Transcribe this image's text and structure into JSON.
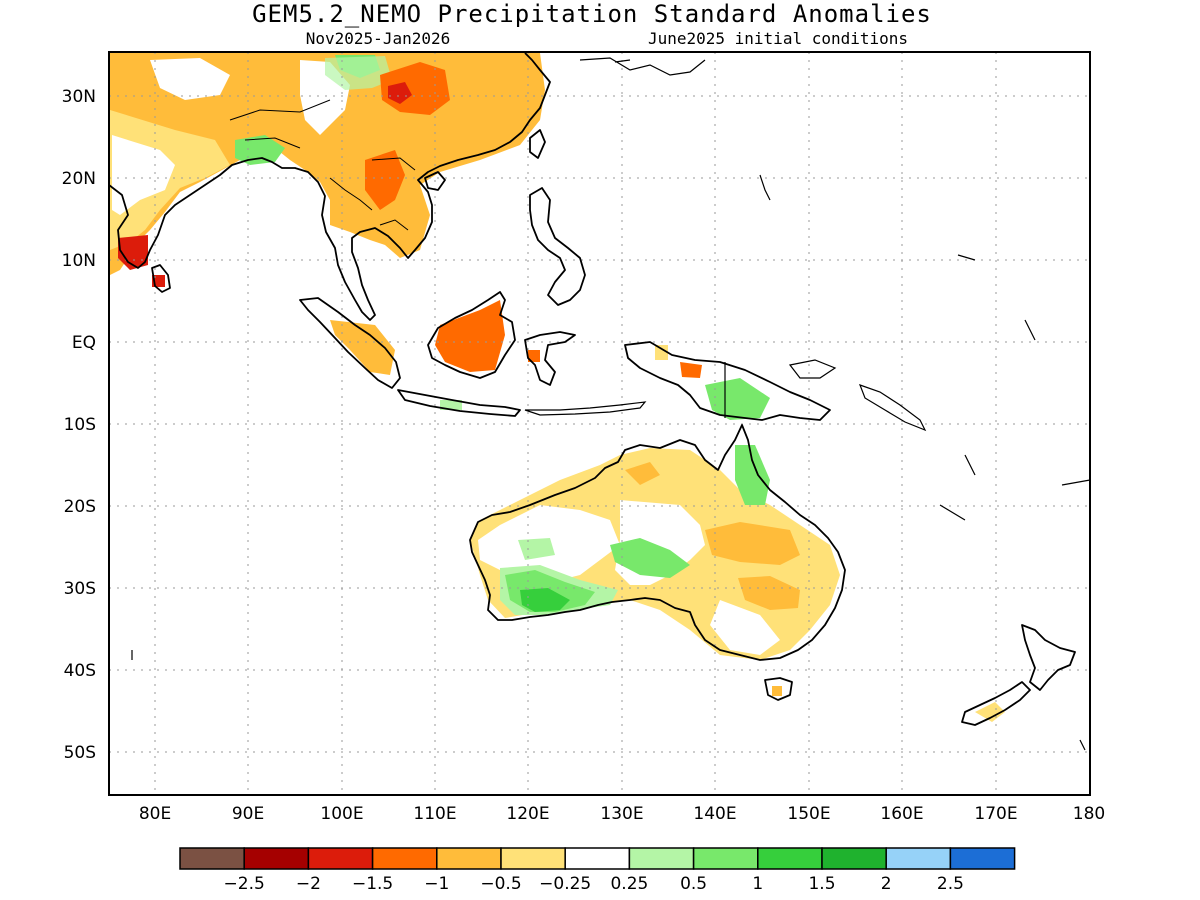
{
  "title": "GEM5.2_NEMO Precipitation Standard Anomalies",
  "subtitle_left": "Nov2025-Jan2026",
  "subtitle_right": "June2025 initial conditions",
  "x_ticks": [
    "80E",
    "90E",
    "100E",
    "110E",
    "120E",
    "130E",
    "140E",
    "150E",
    "160E",
    "170E",
    "180"
  ],
  "y_ticks": [
    "30N",
    "20N",
    "10N",
    "EQ",
    "10S",
    "20S",
    "30S",
    "40S",
    "50S"
  ],
  "colorbar": {
    "colors": [
      "#7b5143",
      "#a50000",
      "#dc1c0b",
      "#ff6a00",
      "#ffbc3a",
      "#ffe178",
      "#ffffff",
      "#b4f5a6",
      "#78e86b",
      "#36cf3c",
      "#1fb22e",
      "#96d2f8",
      "#1c6ed6"
    ],
    "labels": [
      "-2.5",
      "-2",
      "-1.5",
      "-1",
      "-0.5",
      "-0.25",
      "0.25",
      "0.5",
      "1",
      "1.5",
      "2",
      "2.5"
    ]
  },
  "colors": {
    "land_outline": "#000000",
    "grid": "#9a9a9a"
  }
}
